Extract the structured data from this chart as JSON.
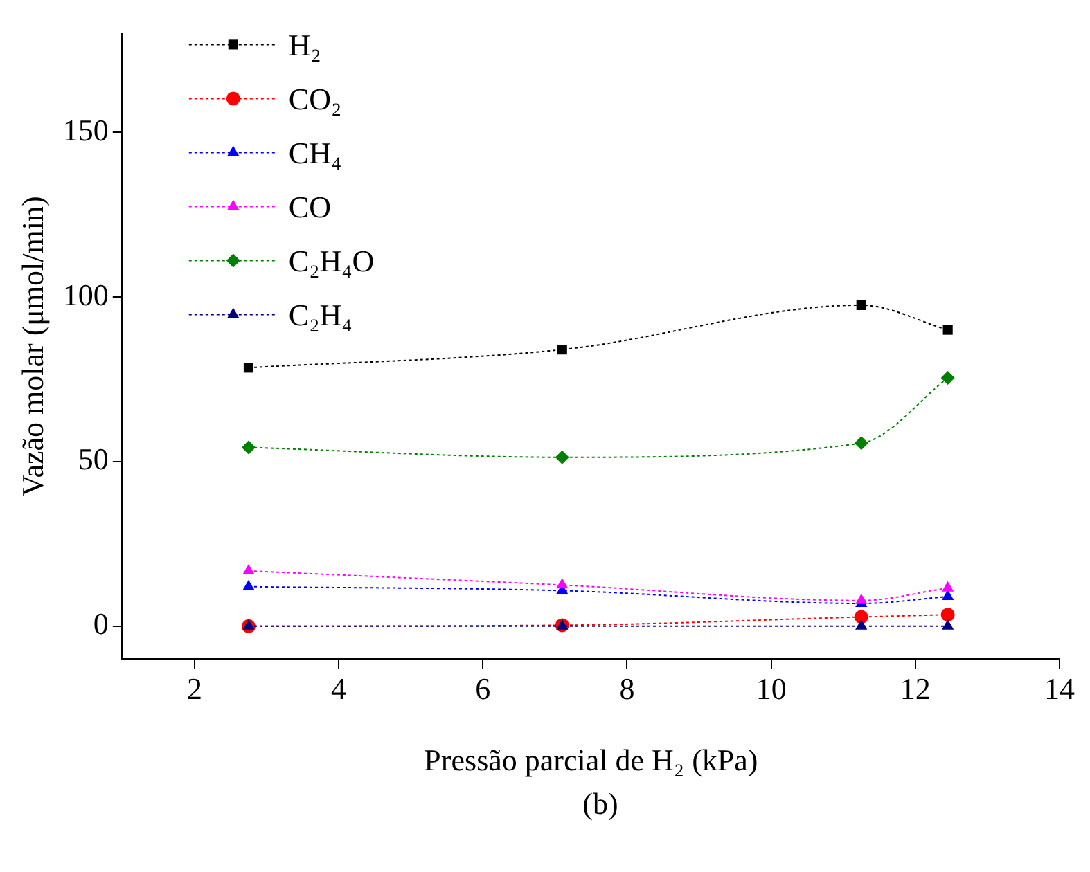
{
  "chart_data": {
    "type": "line",
    "xlabel": "Pressão parcial de H₂ (kPa)",
    "ylabel": "Vazão molar (μmol/min)",
    "x": [
      2.75,
      7.1,
      11.25,
      12.45
    ],
    "series": [
      {
        "name": "H₂",
        "color": "#000000",
        "marker": "square",
        "values": [
          78.5,
          84,
          97.5,
          90
        ]
      },
      {
        "name": "CO₂",
        "color": "#ff0000",
        "marker": "circle",
        "values": [
          0,
          0.3,
          2.8,
          3.5
        ]
      },
      {
        "name": "CH₄",
        "color": "#0000ff",
        "marker": "triangle",
        "values": [
          12,
          10.8,
          6.9,
          9
        ]
      },
      {
        "name": "CO",
        "color": "#ff00ff",
        "marker": "triangle",
        "values": [
          16.8,
          12.5,
          7.8,
          11.6
        ]
      },
      {
        "name": "C₂H₄O",
        "color": "#008000",
        "marker": "diamond",
        "values": [
          54.3,
          51.3,
          55.6,
          75.4
        ]
      },
      {
        "name": "C₂H₄",
        "color": "#000080",
        "marker": "triangle",
        "values": [
          0,
          0,
          0,
          0
        ]
      }
    ],
    "xlim": [
      1,
      14
    ],
    "xticks": [
      2,
      4,
      6,
      8,
      10,
      12,
      14
    ],
    "ylim": [
      -10,
      180
    ],
    "yticks": [
      0,
      50,
      100,
      150
    ],
    "grid": false,
    "legend": "top left",
    "line_style": "dotted",
    "annotations": [
      "(b)"
    ]
  }
}
